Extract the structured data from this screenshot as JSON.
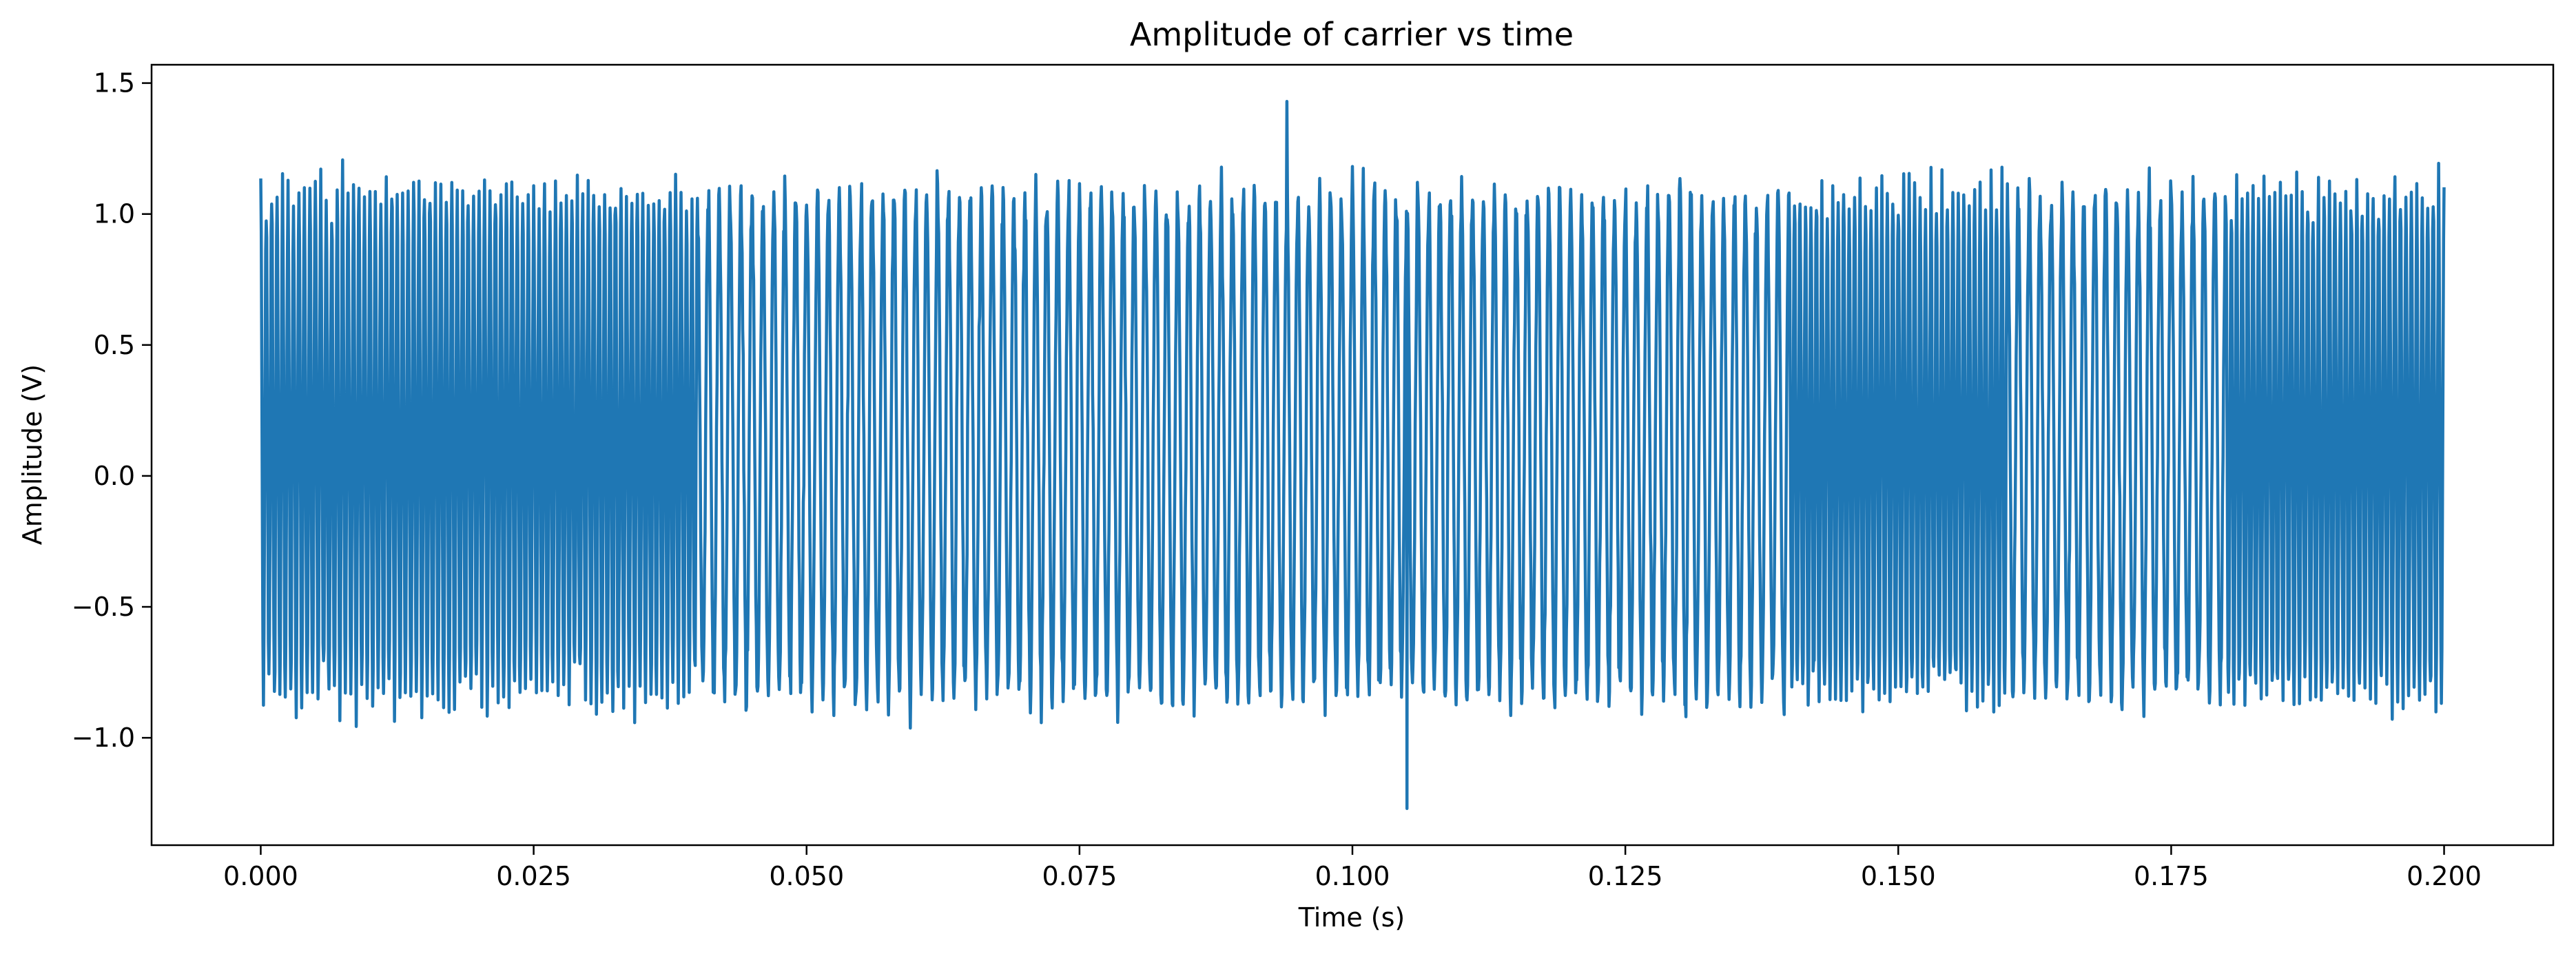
{
  "chart_data": {
    "type": "line",
    "title": "Amplitude of carrier vs time",
    "xlabel": "Time (s)",
    "ylabel": "Amplitude (V)",
    "xlim": [
      -0.01,
      0.21
    ],
    "ylim": [
      -1.41,
      1.57
    ],
    "xticks": [
      0.0,
      0.025,
      0.05,
      0.075,
      0.1,
      0.125,
      0.15,
      0.175,
      0.2
    ],
    "xtick_labels": [
      "0.000",
      "0.025",
      "0.050",
      "0.075",
      "0.100",
      "0.125",
      "0.150",
      "0.175",
      "0.200"
    ],
    "yticks": [
      -1.0,
      -0.5,
      0.0,
      0.5,
      1.0,
      1.5
    ],
    "ytick_labels": [
      "−1.0",
      "−0.5",
      "0.0",
      "0.5",
      "1.0",
      "1.5"
    ],
    "grid": false,
    "series": [
      {
        "color": "#1f77b4",
        "segments": [
          {
            "t_start": 0.0,
            "t_end": 0.04,
            "carrier_hz": 2000
          },
          {
            "t_start": 0.04,
            "t_end": 0.14,
            "carrier_hz": 1000
          },
          {
            "t_start": 0.14,
            "t_end": 0.16,
            "carrier_hz": 2000
          },
          {
            "t_start": 0.16,
            "t_end": 0.18,
            "carrier_hz": 1000
          },
          {
            "t_start": 0.18,
            "t_end": 0.2,
            "carrier_hz": 2000
          }
        ],
        "amplitude_range": [
          -1.27,
          1.43
        ],
        "peak": {
          "t": 0.094,
          "value": 1.43
        },
        "trough": {
          "t": 0.105,
          "value": -1.27
        }
      }
    ]
  }
}
